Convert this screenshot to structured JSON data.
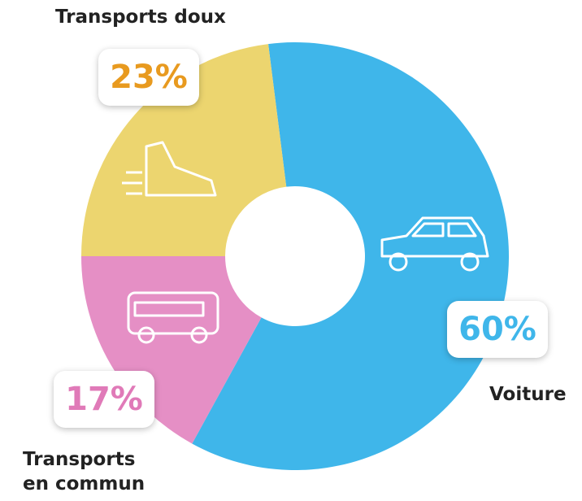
{
  "chart_data": {
    "type": "pie",
    "donut": true,
    "categories": [
      "Voiture",
      "Transports en commun",
      "Transports doux"
    ],
    "values": [
      60,
      17,
      23
    ],
    "value_labels": [
      "60%",
      "17%",
      "23%"
    ],
    "colors": [
      "#3fb6ea",
      "#e58fc5",
      "#ecd56f"
    ],
    "label_colors": [
      "#3fb6ea",
      "#e07ab8",
      "#e89a1f"
    ]
  }
}
